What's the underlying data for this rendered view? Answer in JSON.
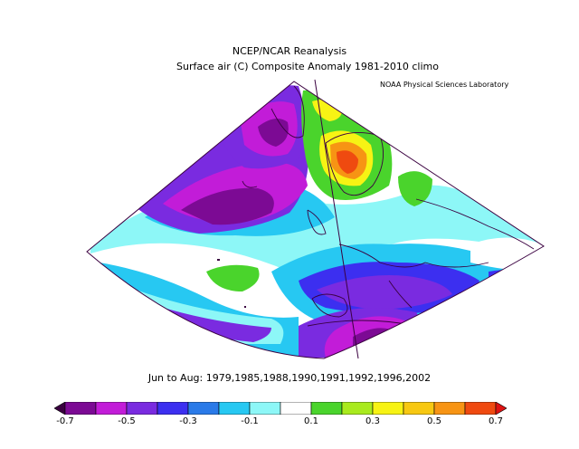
{
  "header": {
    "title": "NCEP/NCAR Reanalysis",
    "subtitle": "Surface air (C) Composite Anomaly 1981-2010 climo",
    "credit": "NOAA Physical Sciences Laboratory"
  },
  "period_label": "Jun to Aug: 1979,1985,1988,1990,1991,1992,1996,2002",
  "colorbar": {
    "levels": [
      "-0.7",
      "-0.5",
      "-0.3",
      "-0.1",
      "0.1",
      "0.3",
      "0.5",
      "0.7"
    ],
    "colors": [
      "#3a0040",
      "#7c0a94",
      "#c21cd8",
      "#7a2be0",
      "#3c2ff0",
      "#2a7ae8",
      "#27c8f2",
      "#8df7f7",
      "#ffffff",
      "#4ad42c",
      "#a9ea1e",
      "#f7f314",
      "#f7c812",
      "#f79414",
      "#ef4a10",
      "#de1212"
    ],
    "units": "C"
  },
  "colors": {
    "deep_purple": "#7c0a94",
    "magenta": "#c21cd8",
    "violet": "#7a2be0",
    "blue": "#3c2ff0",
    "mid_blue": "#2a7ae8",
    "cyan": "#27c8f2",
    "light_cyan": "#8df7f7",
    "green": "#4ad42c",
    "yellow": "#f7f314",
    "orange": "#f79414",
    "red": "#ef4a10",
    "outline": "#3a0040"
  }
}
